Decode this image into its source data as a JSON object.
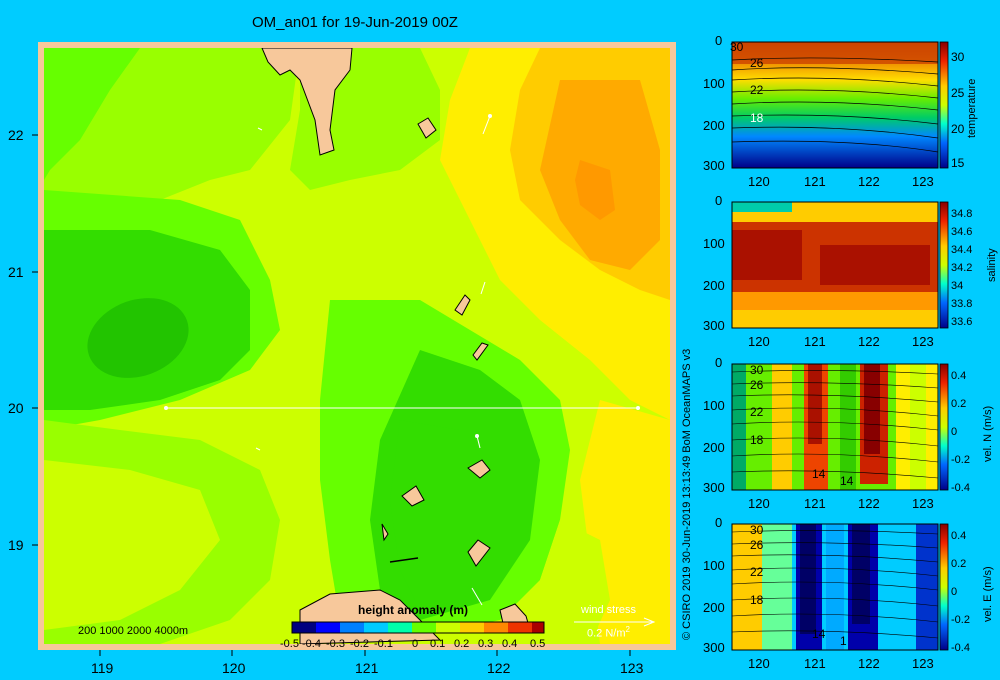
{
  "title": "OM_an01 for 19-Jun-2019 00Z",
  "main_map": {
    "x_ticks": [
      "119",
      "120",
      "121",
      "122",
      "123"
    ],
    "y_ticks": [
      "22",
      "21",
      "20",
      "19"
    ],
    "depth_legend": "200  1000  2000  4000m",
    "colorbar": {
      "label": "height anomaly (m)",
      "ticks": [
        "-0.5",
        "-0.4",
        "-0.3",
        "-0.2",
        "-0.1",
        "0",
        "0.1",
        "0.2",
        "0.3",
        "0.4",
        "0.5"
      ]
    },
    "wind_stress": {
      "label": "wind stress",
      "scale": "0.2 N/m",
      "scale_exp": "2"
    }
  },
  "panels": [
    {
      "colorbar_label": "temperature",
      "colorbar_ticks": [
        "30",
        "25",
        "20",
        "15"
      ],
      "contour_labels": [
        "30",
        "26",
        "22",
        "18"
      ],
      "y_ticks": [
        "0",
        "100",
        "200",
        "300"
      ],
      "x_ticks": [
        "120",
        "121",
        "122",
        "123"
      ]
    },
    {
      "colorbar_label": "salinity",
      "colorbar_ticks": [
        "34.8",
        "34.6",
        "34.4",
        "34.2",
        "34",
        "33.8",
        "33.6"
      ],
      "y_ticks": [
        "0",
        "100",
        "200",
        "300"
      ],
      "x_ticks": [
        "120",
        "121",
        "122",
        "123"
      ]
    },
    {
      "colorbar_label": "vel. N (m/s)",
      "colorbar_ticks": [
        "0.4",
        "0.2",
        "0",
        "-0.2",
        "-0.4"
      ],
      "contour_labels": [
        "30",
        "26",
        "22",
        "18",
        "14",
        "14"
      ],
      "y_ticks": [
        "0",
        "100",
        "200",
        "300"
      ],
      "x_ticks": [
        "120",
        "121",
        "122",
        "123"
      ]
    },
    {
      "colorbar_label": "vel. E (m/s)",
      "colorbar_ticks": [
        "0.4",
        "0.2",
        "0",
        "-0.2",
        "-0.4"
      ],
      "contour_labels": [
        "30",
        "26",
        "22",
        "18",
        "14",
        "1"
      ],
      "y_ticks": [
        "0",
        "100",
        "200",
        "300"
      ],
      "x_ticks": [
        "120",
        "121",
        "122",
        "123"
      ]
    }
  ],
  "credit": "© CSIRO 2019   30-Jun-2019 13:13:49 BoM OceanMAPS v3",
  "colors": {
    "background": "#00ccff",
    "land": "#f7c89b",
    "frame": "#f7c89b"
  }
}
